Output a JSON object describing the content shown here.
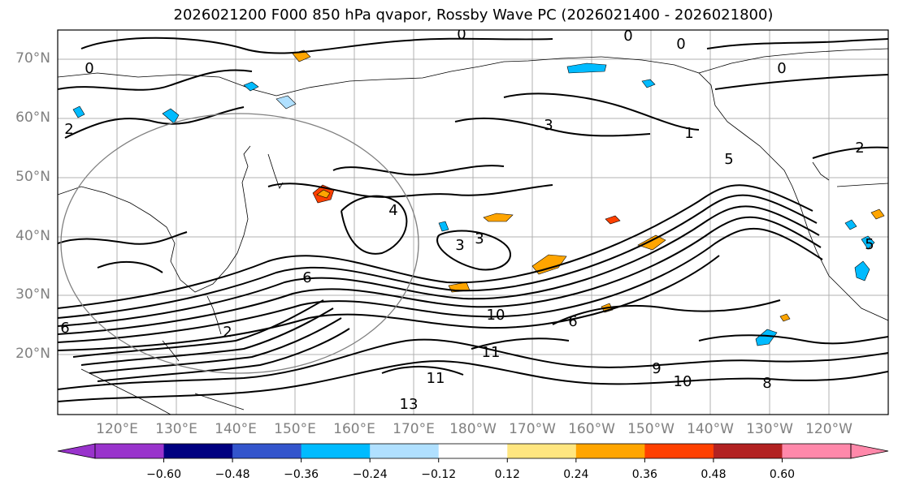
{
  "title": "2026021200 F000 850 hPa qvapor, Rossby Wave PC (2026021400 - 2026021800)",
  "lat_labels": [
    "70°N",
    "60°N",
    "50°N",
    "40°N",
    "30°N",
    "20°N"
  ],
  "lon_labels": [
    "120°E",
    "130°E",
    "140°E",
    "150°E",
    "160°E",
    "170°E",
    "180°W",
    "170°W",
    "160°W",
    "150°W",
    "140°W",
    "130°W",
    "120°W"
  ],
  "contour_labels": [
    "0",
    "0",
    "0",
    "0",
    "0",
    "2",
    "2",
    "3",
    "3",
    "3",
    "4",
    "5",
    "5",
    "6",
    "6",
    "6",
    "8",
    "9",
    "10",
    "10",
    "11",
    "11",
    "13",
    "1",
    "2"
  ],
  "colorbar": {
    "colors": [
      "#9933cc",
      "#000080",
      "#3355cc",
      "#00bbff",
      "#b0e0ff",
      "#ffffff",
      "#ffe680",
      "#ffa500",
      "#ff4000",
      "#b22222",
      "#ff88aa"
    ],
    "ticks": [
      "−0.60",
      "−0.48",
      "−0.36",
      "−0.24",
      "−0.12",
      "0.12",
      "0.24",
      "0.36",
      "0.48",
      "0.60"
    ]
  }
}
